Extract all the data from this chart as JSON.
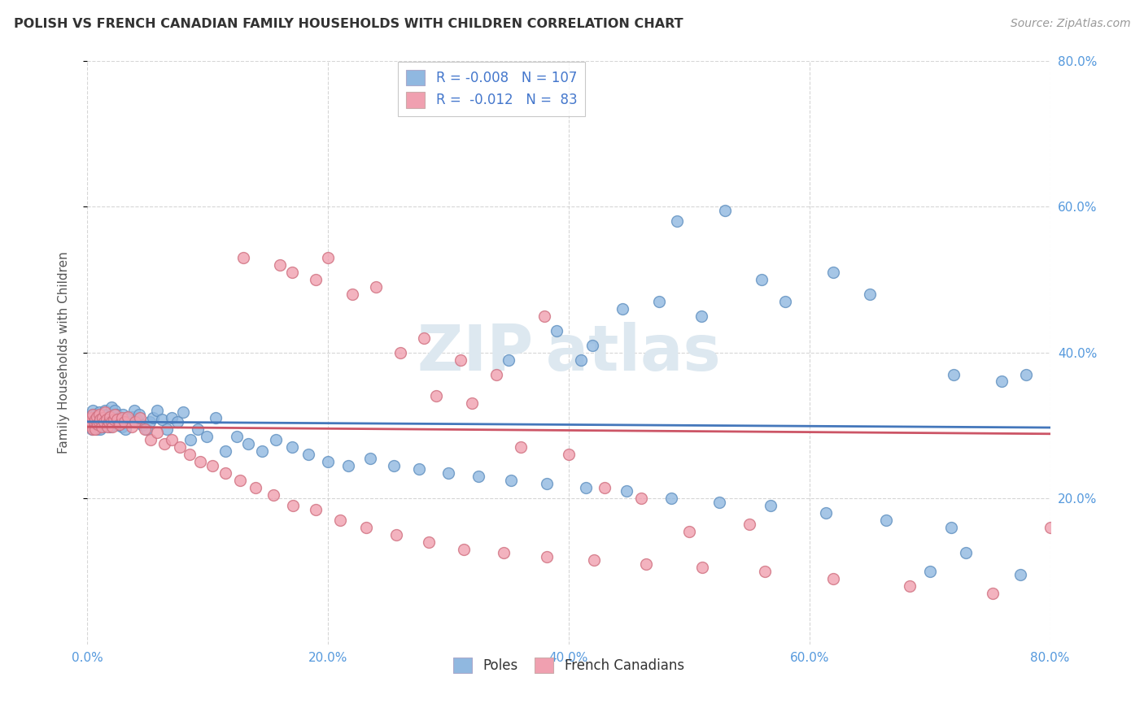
{
  "title": "POLISH VS FRENCH CANADIAN FAMILY HOUSEHOLDS WITH CHILDREN CORRELATION CHART",
  "source": "Source: ZipAtlas.com",
  "ylabel": "Family Households with Children",
  "xlabel": "",
  "xlim": [
    0,
    0.8
  ],
  "ylim": [
    0,
    0.8
  ],
  "blue_color": "#90b8e0",
  "pink_color": "#f0a0b0",
  "blue_edge": "#6090c0",
  "pink_edge": "#d07080",
  "line_blue": "#4477bb",
  "line_pink": "#cc5566",
  "grid_color": "#cccccc",
  "tick_color": "#5599dd",
  "title_color": "#333333",
  "source_color": "#999999",
  "ylabel_color": "#555555",
  "poles_x": [
    0.002,
    0.003,
    0.004,
    0.004,
    0.005,
    0.005,
    0.006,
    0.006,
    0.007,
    0.007,
    0.008,
    0.008,
    0.009,
    0.009,
    0.01,
    0.01,
    0.01,
    0.011,
    0.011,
    0.012,
    0.012,
    0.013,
    0.013,
    0.014,
    0.015,
    0.015,
    0.016,
    0.017,
    0.018,
    0.019,
    0.02,
    0.02,
    0.021,
    0.022,
    0.023,
    0.024,
    0.025,
    0.026,
    0.027,
    0.028,
    0.029,
    0.03,
    0.031,
    0.032,
    0.033,
    0.035,
    0.037,
    0.039,
    0.041,
    0.043,
    0.046,
    0.049,
    0.052,
    0.055,
    0.058,
    0.062,
    0.066,
    0.07,
    0.075,
    0.08,
    0.086,
    0.092,
    0.099,
    0.107,
    0.115,
    0.124,
    0.134,
    0.145,
    0.157,
    0.17,
    0.184,
    0.2,
    0.217,
    0.235,
    0.255,
    0.276,
    0.3,
    0.325,
    0.352,
    0.382,
    0.414,
    0.448,
    0.485,
    0.525,
    0.568,
    0.614,
    0.664,
    0.718,
    0.775,
    0.41,
    0.42,
    0.35,
    0.56,
    0.62,
    0.49,
    0.53,
    0.475,
    0.39,
    0.445,
    0.51,
    0.58,
    0.65,
    0.72,
    0.76,
    0.78,
    0.7,
    0.73
  ],
  "poles_y": [
    0.305,
    0.31,
    0.315,
    0.295,
    0.32,
    0.3,
    0.31,
    0.298,
    0.315,
    0.305,
    0.308,
    0.295,
    0.312,
    0.302,
    0.318,
    0.308,
    0.298,
    0.305,
    0.295,
    0.312,
    0.302,
    0.308,
    0.298,
    0.315,
    0.32,
    0.31,
    0.305,
    0.315,
    0.308,
    0.298,
    0.325,
    0.315,
    0.305,
    0.31,
    0.32,
    0.315,
    0.308,
    0.3,
    0.31,
    0.305,
    0.298,
    0.315,
    0.305,
    0.295,
    0.31,
    0.305,
    0.312,
    0.32,
    0.308,
    0.315,
    0.3,
    0.295,
    0.305,
    0.31,
    0.32,
    0.308,
    0.295,
    0.31,
    0.305,
    0.318,
    0.28,
    0.295,
    0.285,
    0.31,
    0.265,
    0.285,
    0.275,
    0.265,
    0.28,
    0.27,
    0.26,
    0.25,
    0.245,
    0.255,
    0.245,
    0.24,
    0.235,
    0.23,
    0.225,
    0.22,
    0.215,
    0.21,
    0.2,
    0.195,
    0.19,
    0.18,
    0.17,
    0.16,
    0.095,
    0.39,
    0.41,
    0.39,
    0.5,
    0.51,
    0.58,
    0.595,
    0.47,
    0.43,
    0.46,
    0.45,
    0.47,
    0.48,
    0.37,
    0.36,
    0.37,
    0.1,
    0.125
  ],
  "fc_x": [
    0.002,
    0.003,
    0.004,
    0.005,
    0.005,
    0.006,
    0.007,
    0.007,
    0.008,
    0.009,
    0.01,
    0.01,
    0.011,
    0.012,
    0.013,
    0.014,
    0.015,
    0.016,
    0.017,
    0.018,
    0.019,
    0.02,
    0.021,
    0.022,
    0.023,
    0.025,
    0.027,
    0.029,
    0.031,
    0.034,
    0.037,
    0.04,
    0.044,
    0.048,
    0.053,
    0.058,
    0.064,
    0.07,
    0.077,
    0.085,
    0.094,
    0.104,
    0.115,
    0.127,
    0.14,
    0.155,
    0.171,
    0.19,
    0.21,
    0.232,
    0.257,
    0.284,
    0.313,
    0.346,
    0.382,
    0.421,
    0.464,
    0.511,
    0.563,
    0.62,
    0.683,
    0.752,
    0.827,
    0.2,
    0.16,
    0.13,
    0.22,
    0.26,
    0.28,
    0.31,
    0.34,
    0.38,
    0.24,
    0.19,
    0.17,
    0.29,
    0.32,
    0.36,
    0.4,
    0.43,
    0.46,
    0.5,
    0.55
  ],
  "fc_y": [
    0.3,
    0.305,
    0.31,
    0.295,
    0.315,
    0.305,
    0.308,
    0.295,
    0.312,
    0.302,
    0.315,
    0.305,
    0.308,
    0.298,
    0.31,
    0.305,
    0.318,
    0.308,
    0.298,
    0.305,
    0.312,
    0.305,
    0.298,
    0.308,
    0.315,
    0.308,
    0.302,
    0.31,
    0.305,
    0.312,
    0.298,
    0.305,
    0.31,
    0.295,
    0.28,
    0.29,
    0.275,
    0.28,
    0.27,
    0.26,
    0.25,
    0.245,
    0.235,
    0.225,
    0.215,
    0.205,
    0.19,
    0.185,
    0.17,
    0.16,
    0.15,
    0.14,
    0.13,
    0.125,
    0.12,
    0.115,
    0.11,
    0.105,
    0.1,
    0.09,
    0.08,
    0.07,
    0.16,
    0.53,
    0.52,
    0.53,
    0.48,
    0.4,
    0.42,
    0.39,
    0.37,
    0.45,
    0.49,
    0.5,
    0.51,
    0.34,
    0.33,
    0.27,
    0.26,
    0.215,
    0.2,
    0.155,
    0.165
  ]
}
